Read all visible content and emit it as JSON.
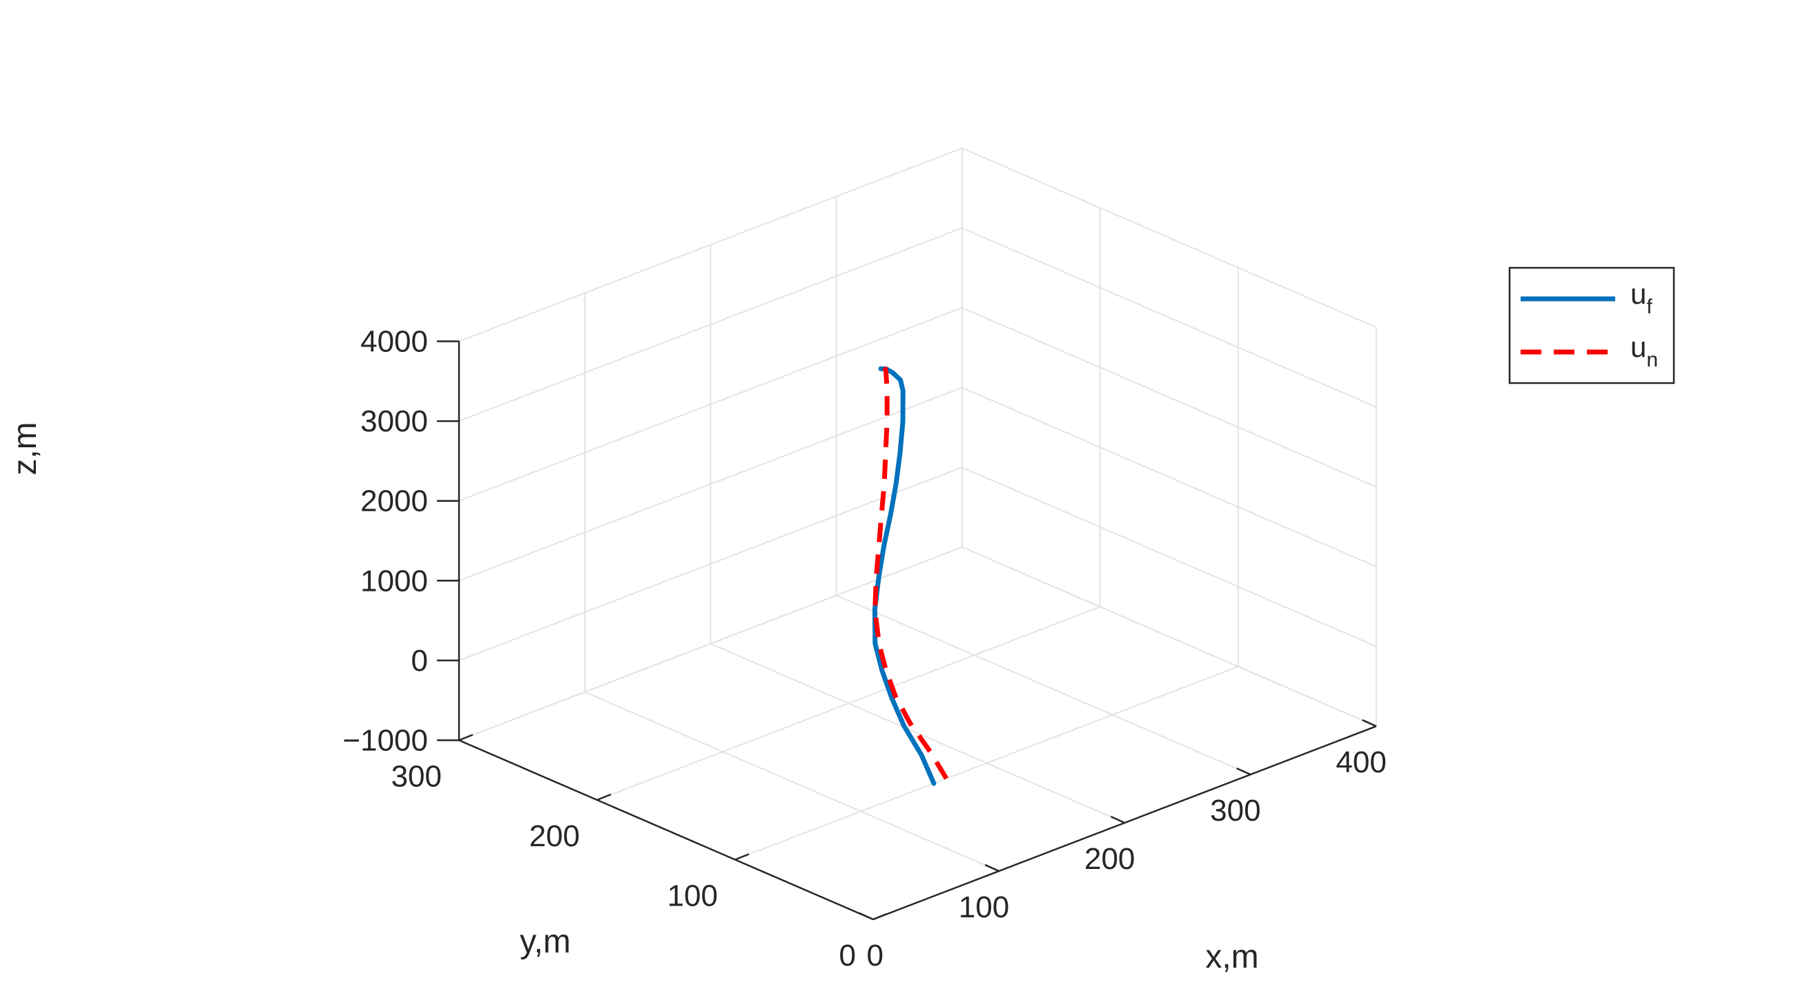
{
  "chart_data": {
    "type": "line",
    "title": "",
    "xlabel": "x,m",
    "ylabel": "y,m",
    "zlabel": "z,m",
    "xlim": [
      0,
      400
    ],
    "ylim": [
      0,
      300
    ],
    "zlim": [
      -1000,
      4000
    ],
    "xticks": [
      "0",
      "100",
      "200",
      "300",
      "400"
    ],
    "yticks": [
      "0",
      "100",
      "200",
      "300"
    ],
    "zticks": [
      "−1000",
      "0",
      "1000",
      "2000",
      "3000",
      "4000"
    ],
    "grid": true,
    "legend_position": "upper-right",
    "colors": {
      "uf": "#0072BD",
      "un": "#FF0000",
      "axis": "#262626",
      "grid": "#e3e3e3"
    },
    "series": [
      {
        "name": "u",
        "subscript": "f",
        "style": "solid",
        "points": [
          [
            158,
            100,
            -1000
          ],
          [
            157,
            108,
            -700
          ],
          [
            155,
            119,
            -400
          ],
          [
            154,
            127,
            -100
          ],
          [
            153,
            133,
            200
          ],
          [
            153,
            138,
            500
          ],
          [
            155,
            140,
            900
          ],
          [
            157,
            139,
            1300
          ],
          [
            159,
            137,
            1700
          ],
          [
            161,
            134,
            2100
          ],
          [
            162,
            131,
            2500
          ],
          [
            163,
            129,
            2900
          ],
          [
            163,
            127,
            3300
          ],
          [
            162,
            126,
            3700
          ],
          [
            160,
            126,
            3850
          ],
          [
            156,
            128,
            3950
          ],
          [
            153,
            130,
            4000
          ],
          [
            151,
            132,
            4000
          ]
        ]
      },
      {
        "name": "u",
        "subscript": "n",
        "style": "dashed",
        "points": [
          [
            168,
            100,
            -1000
          ],
          [
            164,
            108,
            -700
          ],
          [
            160,
            119,
            -400
          ],
          [
            157,
            127,
            -100
          ],
          [
            155,
            132,
            200
          ],
          [
            154,
            136,
            500
          ],
          [
            154,
            139,
            900
          ],
          [
            155,
            139,
            1300
          ],
          [
            156,
            138,
            1700
          ],
          [
            157,
            137,
            2100
          ],
          [
            157,
            135,
            2500
          ],
          [
            157,
            134,
            2900
          ],
          [
            157,
            133,
            3300
          ],
          [
            156,
            132,
            3700
          ],
          [
            155,
            132,
            3950
          ],
          [
            154,
            132,
            4000
          ]
        ]
      }
    ]
  }
}
